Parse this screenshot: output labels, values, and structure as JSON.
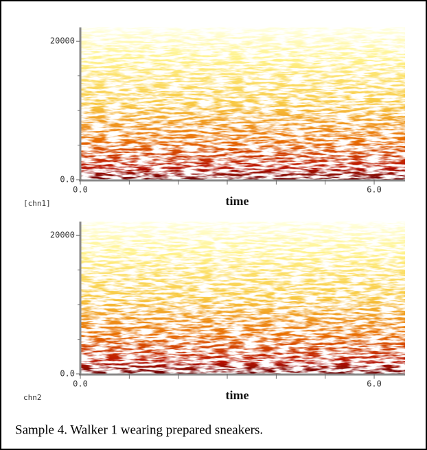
{
  "chart_data": [
    {
      "type": "spectrogram",
      "channel_label": "[chn1]",
      "xlabel": "time",
      "xlim": [
        0,
        6.63
      ],
      "xticks": [
        {
          "value": 0,
          "label": "0.0"
        },
        {
          "value": 6,
          "label": "6.0"
        }
      ],
      "xticks_minor": [
        1,
        2,
        3,
        4,
        5
      ],
      "ylim": [
        0,
        22000
      ],
      "yticks": [
        {
          "value": 0,
          "label": "0.0"
        },
        20000
      ],
      "yticks_minor": [
        5000,
        10000,
        15000
      ]
    },
    {
      "type": "spectrogram",
      "channel_label": "chn2",
      "xlabel": "time",
      "xlim": [
        0,
        6.63
      ],
      "xticks": [
        {
          "value": 0,
          "label": "0.0"
        },
        {
          "value": 6,
          "label": "6.0"
        }
      ],
      "xticks_minor": [
        1,
        2,
        3,
        4,
        5
      ],
      "ylim": [
        0,
        22000
      ],
      "yticks": [
        {
          "value": 0,
          "label": "0.0"
        },
        20000
      ],
      "yticks_minor": [
        5000,
        10000,
        15000
      ]
    }
  ],
  "caption": "Sample 4.  Walker 1 wearing prepared sneakers."
}
